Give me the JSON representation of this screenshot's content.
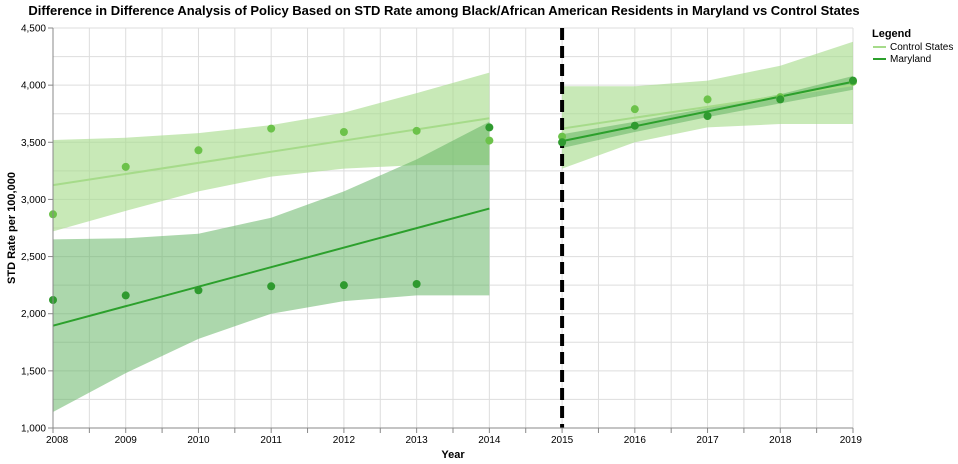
{
  "chart_data": {
    "type": "line",
    "title": "Difference in Difference Analysis of Policy Based on STD Rate among Black/African American Residents in Maryland vs Control States",
    "xlabel": "Year",
    "ylabel": "STD Rate per 100,000",
    "xlim": [
      2008,
      2019
    ],
    "ylim": [
      1000,
      4500
    ],
    "x_ticks": [
      2008,
      2009,
      2010,
      2011,
      2012,
      2013,
      2014,
      2015,
      2016,
      2017,
      2018,
      2019
    ],
    "y_ticks": [
      1000,
      1500,
      2000,
      2500,
      3000,
      3500,
      4000,
      4500
    ],
    "y_tick_labels": [
      "1,000",
      "1,500",
      "2,000",
      "2,500",
      "3,000",
      "3,500",
      "4,000",
      "4,500"
    ],
    "policy_year": 2015,
    "grid": true,
    "legend": {
      "title": "Legend",
      "position": "right"
    },
    "series": [
      {
        "name": "Control States",
        "color": "#a6db8a",
        "point_color": "#6cc24a",
        "points": [
          {
            "x": 2008,
            "y": 2870
          },
          {
            "x": 2009,
            "y": 3285
          },
          {
            "x": 2010,
            "y": 3430
          },
          {
            "x": 2011,
            "y": 3620
          },
          {
            "x": 2012,
            "y": 3590
          },
          {
            "x": 2013,
            "y": 3600
          },
          {
            "x": 2014,
            "y": 3515
          },
          {
            "x": 2015,
            "y": 3550
          },
          {
            "x": 2016,
            "y": 3790
          },
          {
            "x": 2017,
            "y": 3875
          },
          {
            "x": 2018,
            "y": 3895
          },
          {
            "x": 2019,
            "y": 4030
          }
        ],
        "fit_pre": {
          "x": [
            2008,
            2014
          ],
          "y": [
            3125,
            3710
          ]
        },
        "band_pre": [
          {
            "x": 2008,
            "lo": 2720,
            "hi": 3520
          },
          {
            "x": 2009,
            "lo": 2900,
            "hi": 3540
          },
          {
            "x": 2010,
            "lo": 3070,
            "hi": 3580
          },
          {
            "x": 2011,
            "lo": 3200,
            "hi": 3650
          },
          {
            "x": 2012,
            "lo": 3270,
            "hi": 3760
          },
          {
            "x": 2013,
            "lo": 3300,
            "hi": 3930
          },
          {
            "x": 2014,
            "lo": 3300,
            "hi": 4110
          }
        ],
        "fit_post": {
          "x": [
            2015,
            2019
          ],
          "y": [
            3620,
            4000
          ]
        },
        "band_post": [
          {
            "x": 2015,
            "lo": 3270,
            "hi": 3990
          },
          {
            "x": 2016,
            "lo": 3500,
            "hi": 3990
          },
          {
            "x": 2017,
            "lo": 3630,
            "hi": 4040
          },
          {
            "x": 2018,
            "lo": 3660,
            "hi": 4170
          },
          {
            "x": 2019,
            "lo": 3660,
            "hi": 4380
          }
        ]
      },
      {
        "name": "Maryland",
        "color": "#2ca02c",
        "point_color": "#2f9a2f",
        "points": [
          {
            "x": 2008,
            "y": 2120
          },
          {
            "x": 2009,
            "y": 2160
          },
          {
            "x": 2010,
            "y": 2205
          },
          {
            "x": 2011,
            "y": 2240
          },
          {
            "x": 2012,
            "y": 2250
          },
          {
            "x": 2013,
            "y": 2260
          },
          {
            "x": 2014,
            "y": 3630
          },
          {
            "x": 2015,
            "y": 3500
          },
          {
            "x": 2016,
            "y": 3645
          },
          {
            "x": 2017,
            "y": 3730
          },
          {
            "x": 2018,
            "y": 3875
          },
          {
            "x": 2019,
            "y": 4040
          }
        ],
        "fit_pre": {
          "x": [
            2008,
            2014
          ],
          "y": [
            1895,
            2920
          ]
        },
        "band_pre": [
          {
            "x": 2008,
            "lo": 1140,
            "hi": 2650
          },
          {
            "x": 2009,
            "lo": 1480,
            "hi": 2660
          },
          {
            "x": 2010,
            "lo": 1780,
            "hi": 2700
          },
          {
            "x": 2011,
            "lo": 2000,
            "hi": 2840
          },
          {
            "x": 2012,
            "lo": 2110,
            "hi": 3070
          },
          {
            "x": 2013,
            "lo": 2160,
            "hi": 3350
          },
          {
            "x": 2014,
            "lo": 2160,
            "hi": 3680
          }
        ],
        "fit_post": {
          "x": [
            2015,
            2019
          ],
          "y": [
            3510,
            4030
          ]
        },
        "band_post": [
          {
            "x": 2015,
            "lo": 3450,
            "hi": 3570
          },
          {
            "x": 2016,
            "lo": 3590,
            "hi": 3680
          },
          {
            "x": 2017,
            "lo": 3720,
            "hi": 3800
          },
          {
            "x": 2018,
            "lo": 3840,
            "hi": 3920
          },
          {
            "x": 2019,
            "lo": 3960,
            "hi": 4080
          }
        ]
      }
    ]
  }
}
